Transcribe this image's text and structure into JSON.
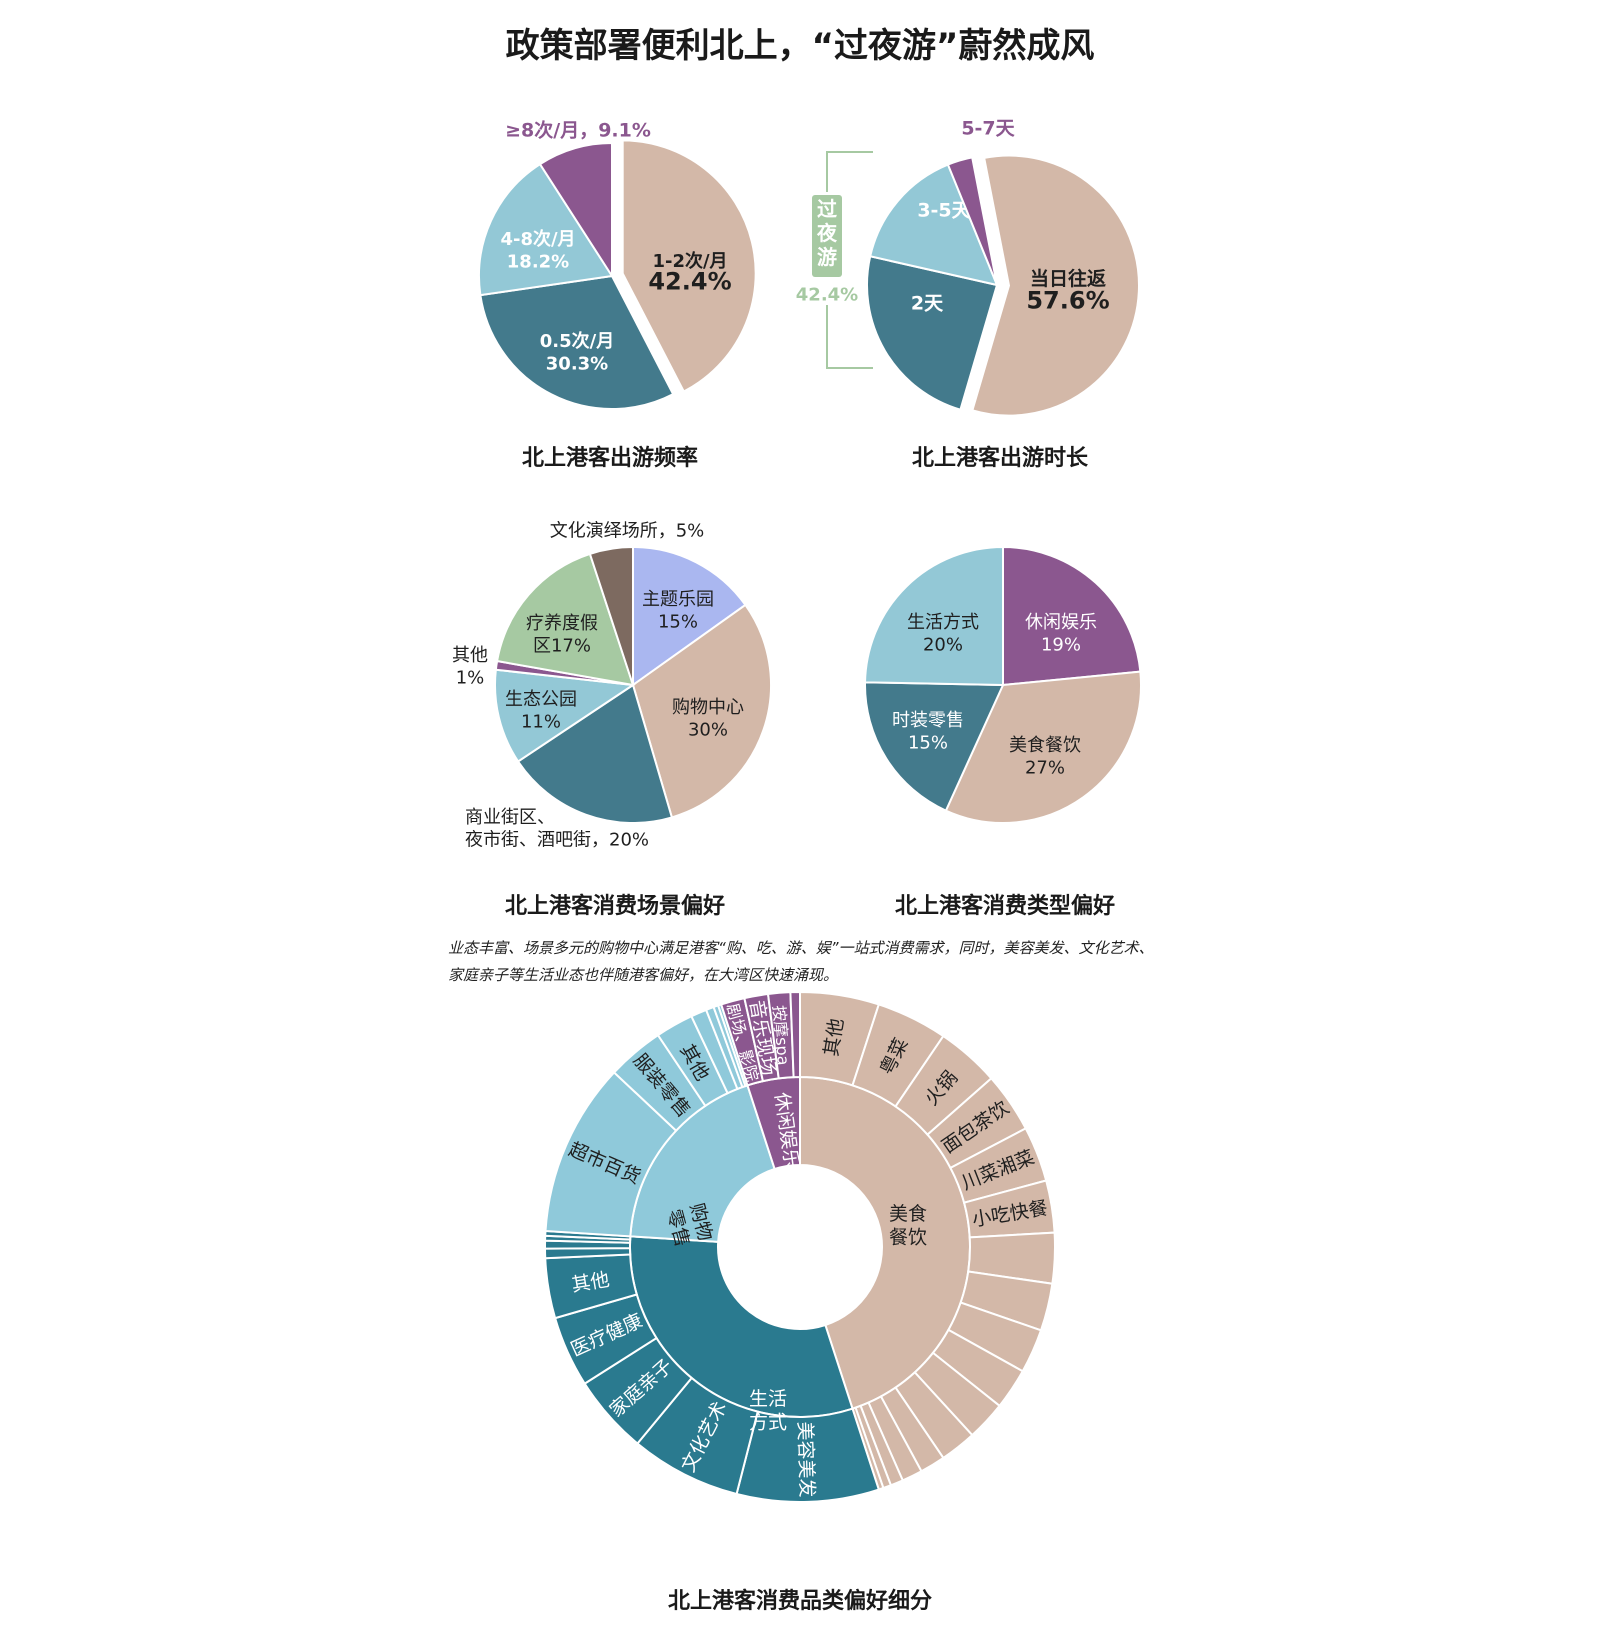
{
  "title": "政策部署便利北上，“过夜游”蔚然成风",
  "colors": {
    "beige": "#d3b8a8",
    "teal_dark": "#437a8c",
    "light_blue": "#93c8d6",
    "purple": "#8b578f",
    "green": "#a6c9a2",
    "lavender": "#aab7f0",
    "brown": "#7d6a60",
    "teal_ring": "#2a7a8f",
    "sky_ring": "#8fc9da"
  },
  "note": "业态丰富、场景多元的购物中心满足港客“购、吃、游、娱”一站式消费需求，同时，美容美发、文化艺术、家庭亲子等生活业态也伴随港客偏好，在大湾区快速涌现。",
  "chart_data": [
    {
      "type": "pie",
      "title": "北上港客出游频率",
      "slices": [
        {
          "label": "1-2次/月",
          "value": 42.4,
          "value_label": "42.4%",
          "color": "#d3b8a8",
          "exploded": true
        },
        {
          "label": "0.5次/月",
          "value": 30.3,
          "value_label": "30.3%",
          "color": "#437a8c"
        },
        {
          "label": "4-8次/月",
          "value": 18.2,
          "value_label": "18.2%",
          "color": "#93c8d6"
        },
        {
          "label": "≥8次/月，9.1%",
          "value": 9.1,
          "value_label": "",
          "color": "#8b578f",
          "label_outside": true
        }
      ]
    },
    {
      "type": "pie",
      "title": "北上港客出游时长",
      "slices": [
        {
          "label": "当日往返",
          "value": 57.6,
          "value_label": "57.6%",
          "color": "#d3b8a8",
          "exploded": true
        },
        {
          "label": "2天",
          "value": 24.0,
          "value_label": "",
          "color": "#437a8c"
        },
        {
          "label": "3-5天",
          "value": 15.3,
          "value_label": "",
          "color": "#93c8d6"
        },
        {
          "label": "5-7天",
          "value": 3.1,
          "value_label": "",
          "color": "#8b578f",
          "label_outside": true
        }
      ],
      "bracket": {
        "label": "过夜游",
        "value_label": "42.4%",
        "color": "#a6c9a2"
      }
    },
    {
      "type": "pie",
      "title": "北上港客消费场景偏好",
      "slices": [
        {
          "label": "主题乐园",
          "value": 15,
          "value_label": "15%",
          "color": "#aab7f0"
        },
        {
          "label": "购物中心",
          "value": 30,
          "value_label": "30%",
          "color": "#d3b8a8"
        },
        {
          "label": "商业街区、夜市街、酒吧街，20%",
          "value": 20,
          "value_label": "",
          "color": "#437a8c",
          "label_outside": true
        },
        {
          "label": "生态公园",
          "value": 11,
          "value_label": "11%",
          "color": "#93c8d6"
        },
        {
          "label": "其他",
          "value": 1,
          "value_label": "1%",
          "color": "#8b578f",
          "label_outside": true
        },
        {
          "label": "疗养度假区17%",
          "value": 17,
          "value_label": "",
          "color": "#a6c9a2"
        },
        {
          "label": "文化演绎场所，5%",
          "value": 5,
          "value_label": "",
          "color": "#7d6a60",
          "label_outside": true
        }
      ]
    },
    {
      "type": "pie",
      "title": "北上港客消费类型偏好",
      "slices": [
        {
          "label": "休闲娱乐",
          "value": 19,
          "value_label": "19%",
          "color": "#8b578f"
        },
        {
          "label": "美食餐饮",
          "value": 27,
          "value_label": "27%",
          "color": "#d3b8a8"
        },
        {
          "label": "时装零售",
          "value": 15,
          "value_label": "15%",
          "color": "#437a8c"
        },
        {
          "label": "生活方式",
          "value": 20,
          "value_label": "20%",
          "color": "#93c8d6"
        }
      ]
    },
    {
      "type": "sunburst",
      "title": "北上港客消费品类偏好细分",
      "inner": [
        {
          "label": "美食餐饮",
          "value": 45,
          "color": "#d3b8a8"
        },
        {
          "label": "生活方式",
          "value": 31,
          "color": "#2a7a8f"
        },
        {
          "label": "购物零售",
          "value": 19,
          "color": "#8fc9da"
        },
        {
          "label": "休闲娱乐",
          "value": 5,
          "color": "#8b578f"
        }
      ],
      "outer": [
        {
          "parent": "美食餐饮",
          "label": "其他",
          "value": 5
        },
        {
          "parent": "美食餐饮",
          "label": "粤菜",
          "value": 4.5
        },
        {
          "parent": "美食餐饮",
          "label": "火锅",
          "value": 4.0
        },
        {
          "parent": "美食餐饮",
          "label": "面包茶饮",
          "value": 3.8
        },
        {
          "parent": "美食餐饮",
          "label": "川菜湘菜",
          "value": 3.5
        },
        {
          "parent": "美食餐饮",
          "label": "小吃快餐",
          "value": 3.3
        },
        {
          "parent": "美食餐饮",
          "label": "",
          "value": 3.2
        },
        {
          "parent": "美食餐饮",
          "label": "",
          "value": 3.0
        },
        {
          "parent": "美食餐饮",
          "label": "",
          "value": 2.8
        },
        {
          "parent": "美食餐饮",
          "label": "",
          "value": 2.6
        },
        {
          "parent": "美食餐饮",
          "label": "",
          "value": 2.5
        },
        {
          "parent": "美食餐饮",
          "label": "",
          "value": 2.3
        },
        {
          "parent": "美食餐饮",
          "label": "",
          "value": 1.6
        },
        {
          "parent": "美食餐饮",
          "label": "",
          "value": 1.3
        },
        {
          "parent": "美食餐饮",
          "label": "",
          "value": 0.8
        },
        {
          "parent": "美食餐饮",
          "label": "",
          "value": 0.5
        },
        {
          "parent": "美食餐饮",
          "label": "",
          "value": 0.3
        },
        {
          "parent": "生活方式",
          "label": "美容美发",
          "value": 9
        },
        {
          "parent": "生活方式",
          "label": "文化艺术",
          "value": 7
        },
        {
          "parent": "生活方式",
          "label": "家庭亲子",
          "value": 5
        },
        {
          "parent": "生活方式",
          "label": "医疗健康",
          "value": 4.5
        },
        {
          "parent": "生活方式",
          "label": "其他",
          "value": 3.8
        },
        {
          "parent": "生活方式",
          "label": "",
          "value": 0.6
        },
        {
          "parent": "生活方式",
          "label": "",
          "value": 0.5
        },
        {
          "parent": "生活方式",
          "label": "",
          "value": 0.3
        },
        {
          "parent": "生活方式",
          "label": "",
          "value": 0.3
        },
        {
          "parent": "购物零售",
          "label": "超市百货",
          "value": 11
        },
        {
          "parent": "购物零售",
          "label": "服装零售",
          "value": 3.6
        },
        {
          "parent": "购物零售",
          "label": "其他",
          "value": 2.4
        },
        {
          "parent": "购物零售",
          "label": "",
          "value": 1.0
        },
        {
          "parent": "购物零售",
          "label": "",
          "value": 0.5
        },
        {
          "parent": "购物零售",
          "label": "",
          "value": 0.3
        },
        {
          "parent": "购物零售",
          "label": "",
          "value": 0.2
        },
        {
          "parent": "休闲娱乐",
          "label": "剧场、影院",
          "value": 1.5
        },
        {
          "parent": "休闲娱乐",
          "label": "音乐现场",
          "value": 1.5
        },
        {
          "parent": "休闲娱乐",
          "label": "按摩spa",
          "value": 1.4
        },
        {
          "parent": "休闲娱乐",
          "label": "",
          "value": 0.6
        }
      ]
    }
  ]
}
